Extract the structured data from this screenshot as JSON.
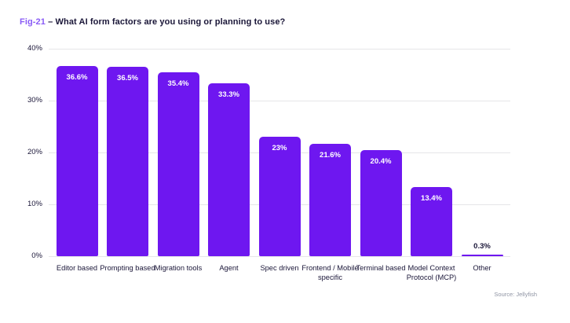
{
  "figure": {
    "fig_label": "Fig-21",
    "separator": "–",
    "title": "What AI form factors are you using or planning to use?",
    "source": "Source: Jellyfish"
  },
  "colors": {
    "bar": "#6E17F0",
    "fig_label": "#8A5CF6",
    "text": "#1A1638",
    "gridline": "#E6E6E8",
    "value_label": "#FFFFFF",
    "source_text": "#8F94A3"
  },
  "chart_data": {
    "type": "bar",
    "title": "What AI form factors are you using or planning to use?",
    "categories": [
      "Editor based",
      "Prompting based",
      "Migration tools",
      "Agent",
      "Spec driven",
      "Frontend / Mobile specific",
      "Terminal based",
      "Model Context Protocol (MCP)",
      "Other"
    ],
    "values": [
      36.6,
      36.5,
      35.4,
      33.3,
      23,
      21.6,
      20.4,
      13.4,
      0.3
    ],
    "value_labels": [
      "36.6%",
      "36.5%",
      "35.4%",
      "33.3%",
      "23%",
      "21.6%",
      "20.4%",
      "13.4%",
      "0.3%"
    ],
    "xlabel": "",
    "ylabel": "",
    "ylim": [
      0,
      40
    ],
    "yticks": [
      0,
      10,
      20,
      30,
      40
    ],
    "ytick_labels": [
      "0%",
      "10%",
      "20%",
      "30%",
      "40%"
    ],
    "grid": true,
    "legend": false,
    "value_label_outside_threshold": 6
  }
}
